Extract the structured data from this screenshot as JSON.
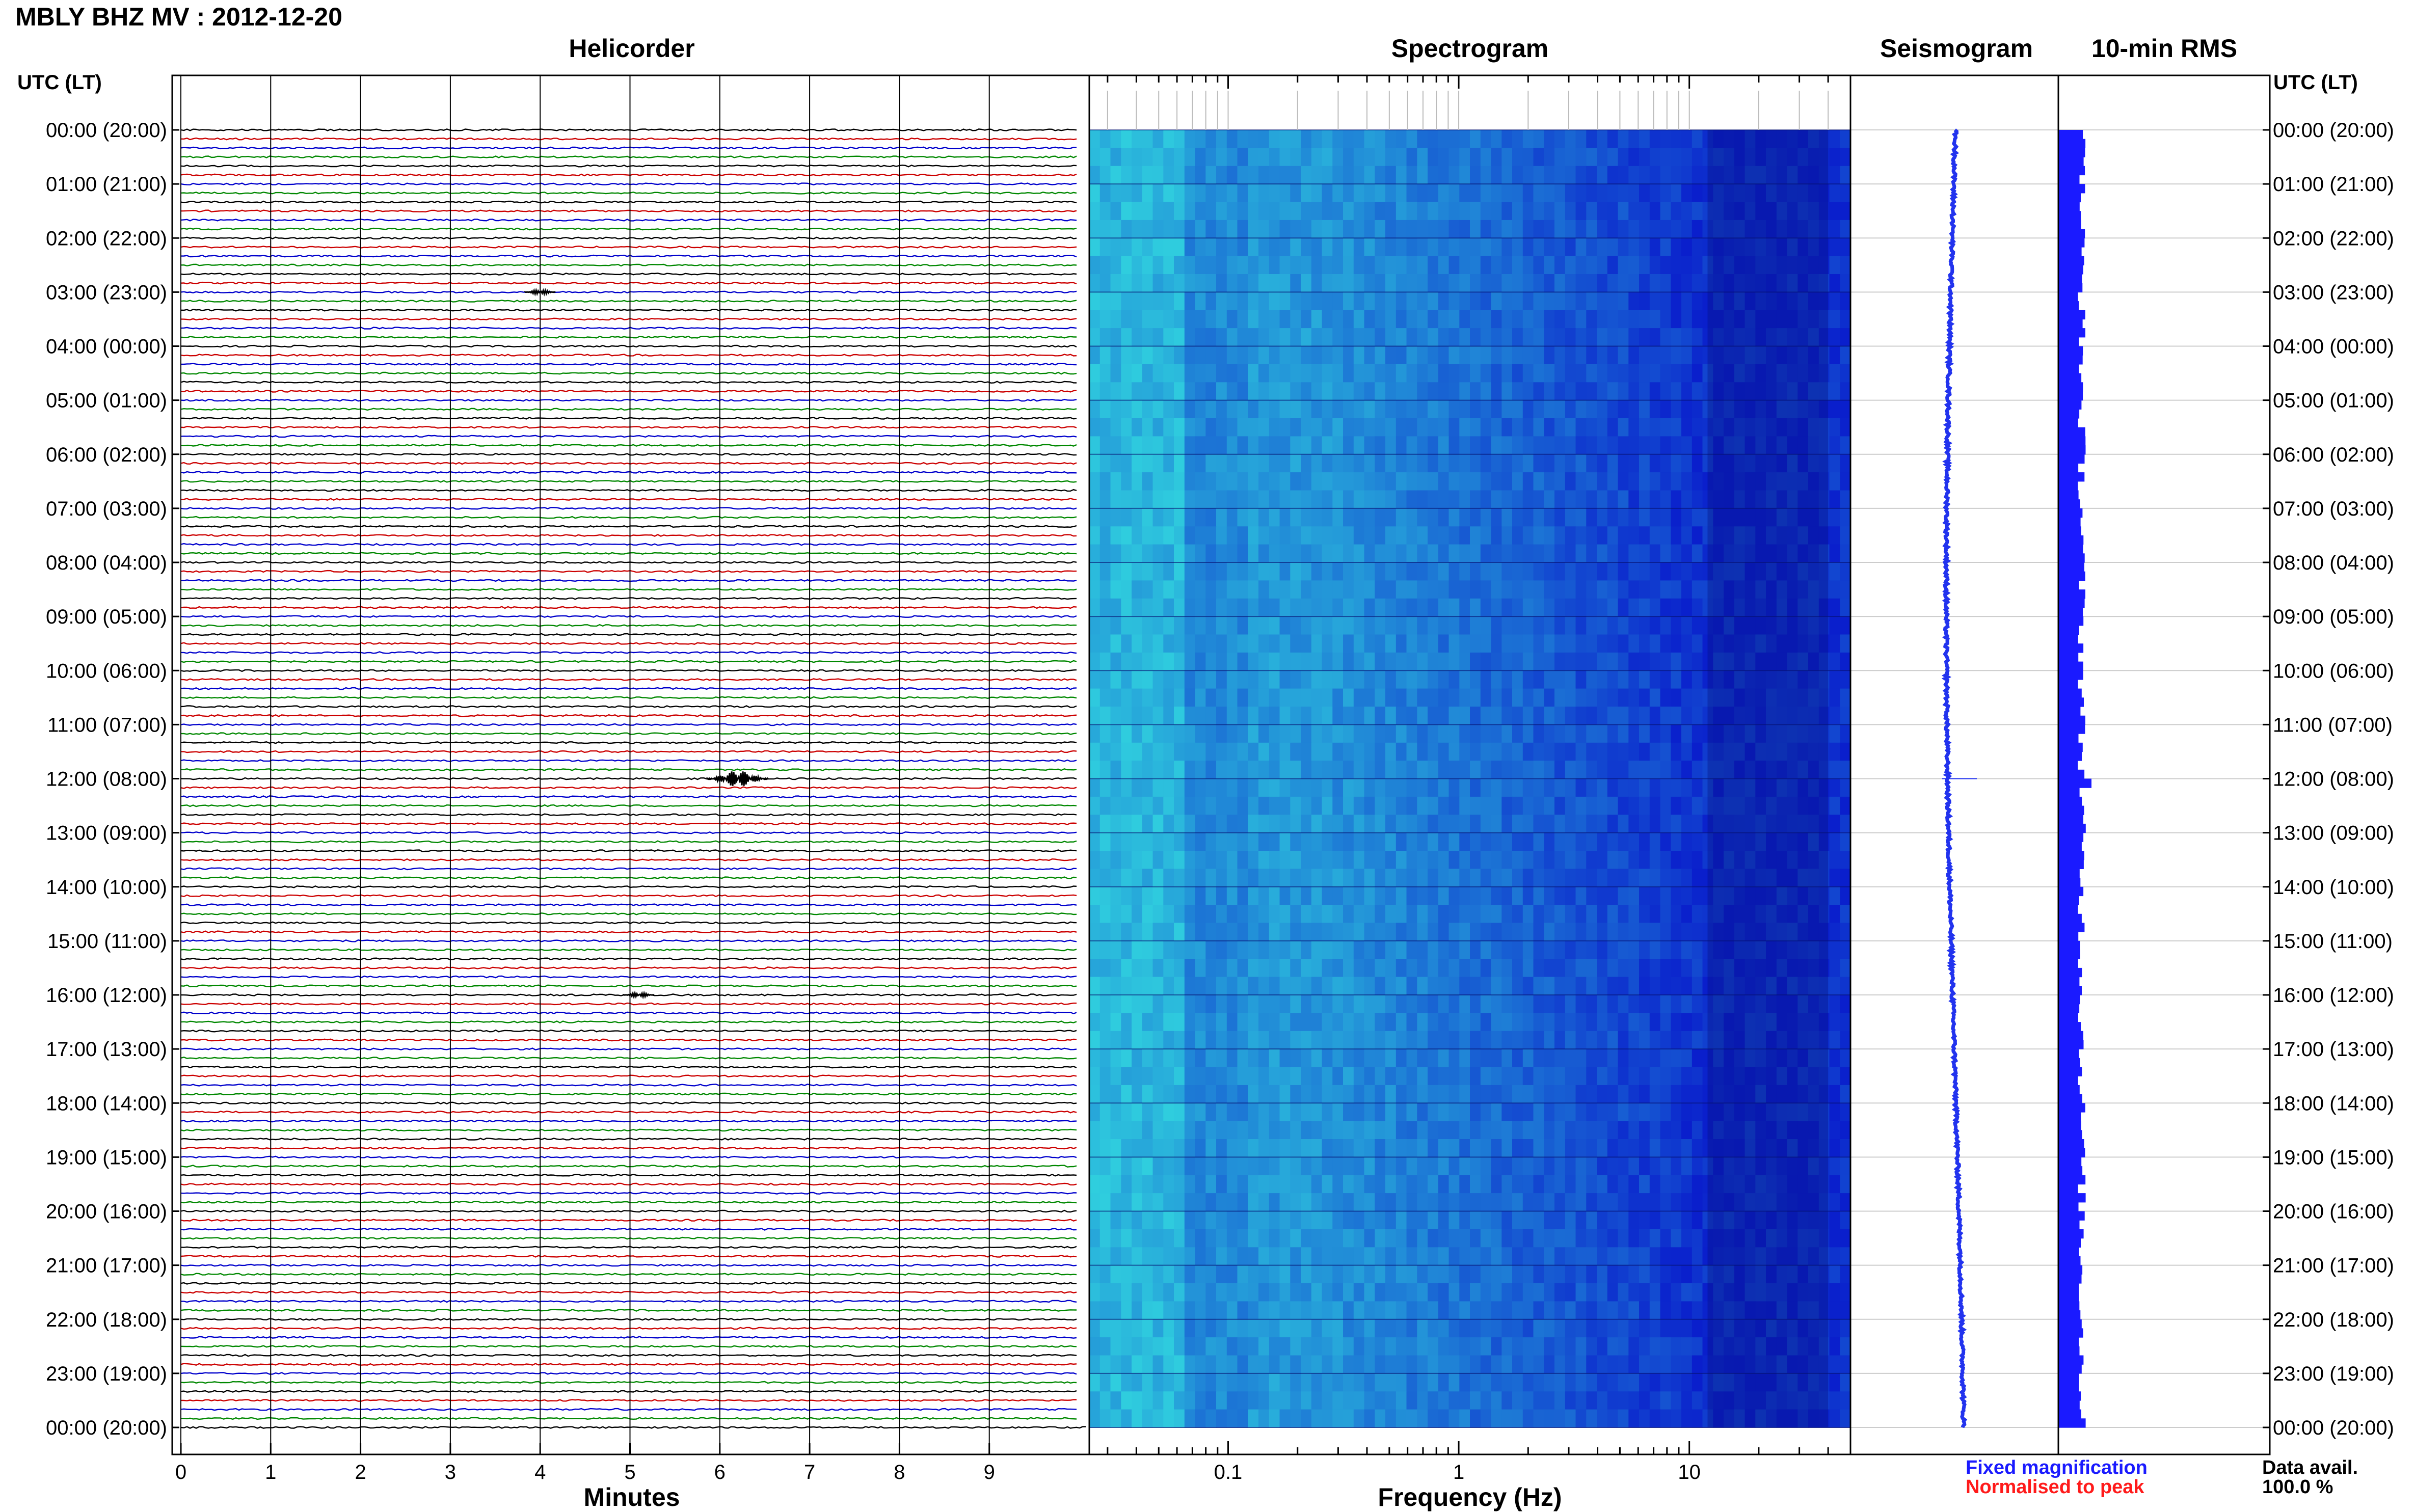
{
  "window": {
    "title": "MBLY BHZ MV : 2012-12-20"
  },
  "panels": {
    "helicorder_title": "Helicorder",
    "spectrogram_title": "Spectrogram",
    "seismogram_title": "Seismogram",
    "rms_title": "10-min RMS"
  },
  "axes": {
    "left_time_header": "UTC (LT)",
    "right_time_header": "UTC (LT)",
    "helicorder_xlabel": "Minutes",
    "spectrogram_xlabel": "Frequency (Hz)"
  },
  "legend": {
    "fixed": "Fixed magnification",
    "normalised": "Normalised to peak"
  },
  "availability": {
    "label": "Data avail.",
    "value": "100.0 %"
  },
  "colors": {
    "trace_cycle": [
      "#000000",
      "#cc0000",
      "#0000cc",
      "#008800"
    ],
    "spectrogram_low": "#0a1fcc",
    "spectrogram_high": "#33e0e0",
    "seismogram_trace": "#2233ee",
    "rms_bar": "#1a1aff",
    "legend_fixed": "#1a1aff",
    "legend_normalised": "#ff1a1a"
  },
  "chart_data": [
    {
      "type": "line",
      "title": "Helicorder",
      "xlabel": "Minutes",
      "xlim": [
        0,
        10
      ],
      "x_ticks": [
        "0",
        "1",
        "2",
        "3",
        "4",
        "5",
        "6",
        "7",
        "8",
        "9"
      ],
      "traces_per_hour": 6,
      "trace_minutes": 10,
      "y_ticks": [
        "00:00 (20:00)",
        "01:00 (21:00)",
        "02:00 (22:00)",
        "03:00 (23:00)",
        "04:00 (00:00)",
        "05:00 (01:00)",
        "06:00 (02:00)",
        "07:00 (03:00)",
        "08:00 (04:00)",
        "09:00 (05:00)",
        "10:00 (06:00)",
        "11:00 (07:00)",
        "12:00 (08:00)",
        "13:00 (09:00)",
        "14:00 (10:00)",
        "15:00 (11:00)",
        "16:00 (12:00)",
        "17:00 (13:00)",
        "18:00 (14:00)",
        "19:00 (15:00)",
        "20:00 (16:00)",
        "21:00 (17:00)",
        "22:00 (18:00)",
        "23:00 (19:00)",
        "00:00 (20:00)"
      ],
      "events": [
        {
          "hour": 12,
          "minute": 6.2,
          "amplitude": "large"
        },
        {
          "hour": 16,
          "minute": 5.1,
          "amplitude": "small"
        },
        {
          "hour": 3,
          "minute": 4.0,
          "amplitude": "small"
        }
      ]
    },
    {
      "type": "heatmap",
      "title": "Spectrogram",
      "xlabel": "Frequency (Hz)",
      "x_scale": "log",
      "xlim": [
        0.025,
        50
      ],
      "x_ticks": [
        "0.1",
        "1",
        "10"
      ],
      "x_tick_values": [
        0.1,
        1,
        10
      ]
    },
    {
      "type": "line",
      "title": "Seismogram",
      "description_hours": 24
    },
    {
      "type": "bar",
      "title": "10-min RMS",
      "orientation": "horizontal",
      "spike_hour": 12
    }
  ]
}
